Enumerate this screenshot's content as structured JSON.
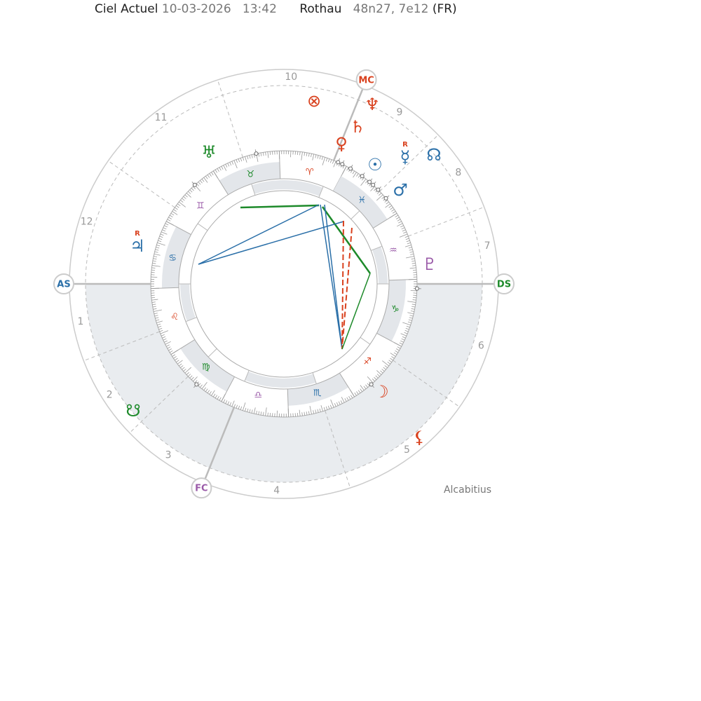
{
  "header": {
    "title": "Ciel Actuel",
    "date": "10-03-2026",
    "time": "13:42",
    "place": "Rothau",
    "coords": "48n27, 7e12",
    "country": "(FR)"
  },
  "angles": {
    "as": "AS",
    "ds": "DS",
    "mc": "MC",
    "fc": "FC"
  },
  "houses": [
    1,
    2,
    3,
    4,
    5,
    6,
    7,
    8,
    9,
    10,
    11,
    12
  ],
  "signs": [
    "♈",
    "♉",
    "♊",
    "♋",
    "♌",
    "♍",
    "♎",
    "♏",
    "♐",
    "♑",
    "♒",
    "♓"
  ],
  "planets": [
    {
      "glyph": "⊗"
    },
    {
      "glyph": "♆"
    },
    {
      "glyph": "♄"
    },
    {
      "glyph": "♀"
    },
    {
      "glyph": "☉"
    },
    {
      "glyph": "☿",
      "retro": "R"
    },
    {
      "glyph": "☊"
    },
    {
      "glyph": "♂"
    },
    {
      "glyph": "♇"
    },
    {
      "glyph": "☽"
    },
    {
      "glyph": "⚸"
    },
    {
      "glyph": "☋"
    },
    {
      "glyph": "♃",
      "retro": "R"
    },
    {
      "glyph": "♅"
    }
  ],
  "house_system": "Alcabitius"
}
